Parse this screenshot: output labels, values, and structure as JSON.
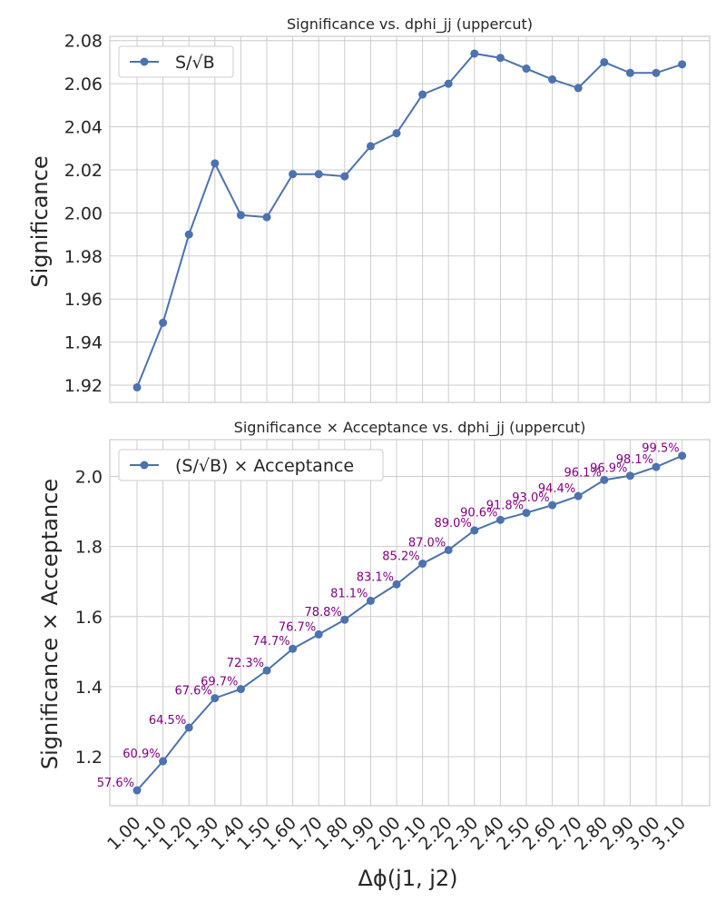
{
  "chart_data": [
    {
      "type": "line",
      "title": "Significance vs. dphi_jj (uppercut)",
      "ylabel": "Significance",
      "xlabel": "",
      "ylim": [
        1.912,
        2.082
      ],
      "yticks": [
        "1.92",
        "1.94",
        "1.96",
        "1.98",
        "2.00",
        "2.02",
        "2.04",
        "2.06",
        "2.08"
      ],
      "grid": true,
      "legend_position": "top-left",
      "categories": [
        "1.00",
        "1.10",
        "1.20",
        "1.30",
        "1.40",
        "1.50",
        "1.60",
        "1.70",
        "1.80",
        "1.90",
        "2.00",
        "2.10",
        "2.20",
        "2.30",
        "2.40",
        "2.50",
        "2.60",
        "2.70",
        "2.80",
        "2.90",
        "3.00",
        "3.10"
      ],
      "series": [
        {
          "name": "S/√B",
          "color": "#4c72b0",
          "values": [
            1.919,
            1.949,
            1.99,
            2.023,
            1.999,
            1.998,
            2.018,
            2.018,
            2.017,
            2.031,
            2.037,
            2.055,
            2.06,
            2.074,
            2.072,
            2.067,
            2.062,
            2.058,
            2.07,
            2.065,
            2.065,
            2.069
          ]
        }
      ]
    },
    {
      "type": "line",
      "title": "Significance × Acceptance vs. dphi_jj (uppercut)",
      "ylabel": "Significance × Acceptance",
      "xlabel": "Δϕ(j1, j2)",
      "ylim": [
        1.06,
        2.105
      ],
      "yticks": [
        "1.2",
        "1.4",
        "1.6",
        "1.8",
        "2.0"
      ],
      "grid": true,
      "legend_position": "top-left",
      "categories": [
        "1.00",
        "1.10",
        "1.20",
        "1.30",
        "1.40",
        "1.50",
        "1.60",
        "1.70",
        "1.80",
        "1.90",
        "2.00",
        "2.10",
        "2.20",
        "2.30",
        "2.40",
        "2.50",
        "2.60",
        "2.70",
        "2.80",
        "2.90",
        "3.00",
        "3.10"
      ],
      "annotation_color": "#800080",
      "series": [
        {
          "name": "(S/√B) × Acceptance",
          "color": "#4c72b0",
          "values": [
            1.104,
            1.187,
            1.283,
            1.367,
            1.393,
            1.446,
            1.508,
            1.549,
            1.591,
            1.645,
            1.692,
            1.751,
            1.79,
            1.846,
            1.876,
            1.896,
            1.918,
            1.944,
            1.99,
            2.002,
            2.027,
            2.059
          ],
          "labels": [
            "57.6%",
            "60.9%",
            "64.5%",
            "67.6%",
            "69.7%",
            "72.3%",
            "74.7%",
            "76.7%",
            "78.8%",
            "81.1%",
            "83.1%",
            "85.2%",
            "87.0%",
            "89.0%",
            "90.6%",
            "91.8%",
            "93.0%",
            "94.4%",
            "96.1%",
            "96.9%",
            "98.1%",
            "99.5%"
          ]
        }
      ]
    }
  ]
}
